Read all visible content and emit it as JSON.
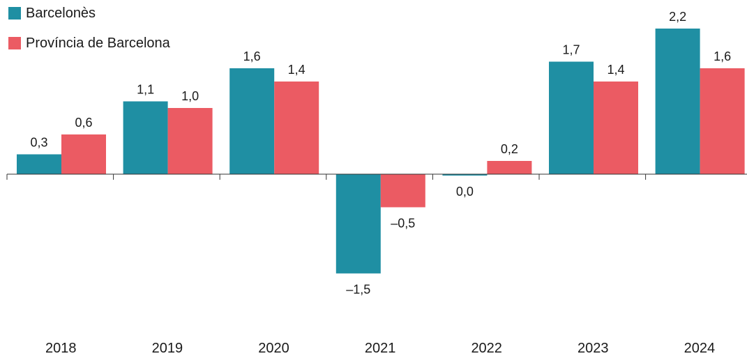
{
  "chart_data": {
    "type": "bar",
    "categories": [
      "2018",
      "2019",
      "2020",
      "2021",
      "2022",
      "2023",
      "2024"
    ],
    "series": [
      {
        "name": "Barcelonès",
        "color": "#1f8fa3",
        "values": [
          0.3,
          1.1,
          1.6,
          -1.5,
          -0.02,
          1.7,
          2.2
        ],
        "labels": [
          "0,3",
          "1,1",
          "1,6",
          "–1,5",
          "0,0",
          "1,7",
          "2,2"
        ]
      },
      {
        "name": "Província de Barcelona",
        "color": "#eb5b63",
        "values": [
          0.6,
          1.0,
          1.4,
          -0.5,
          0.2,
          1.4,
          1.6
        ],
        "labels": [
          "0,6",
          "1,0",
          "1,4",
          "–0,5",
          "0,2",
          "1,4",
          "1,6"
        ]
      }
    ],
    "ylim": [
      -2.7,
      2.3
    ],
    "grid": false,
    "legend_position": "top-left"
  }
}
